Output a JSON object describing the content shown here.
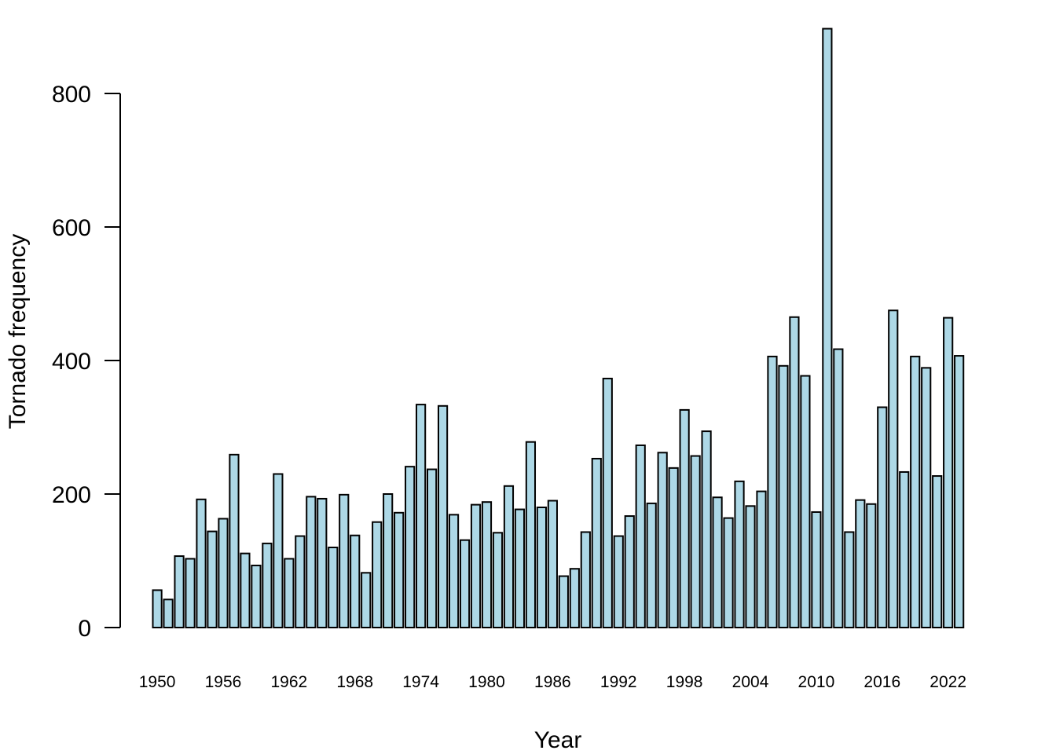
{
  "chart_data": {
    "type": "bar",
    "xlabel": "Year",
    "ylabel": "Tornado frequency",
    "ylim": [
      0,
      900
    ],
    "y_ticks": [
      0,
      200,
      400,
      600,
      800
    ],
    "x_tick_labels": [
      "1950",
      "1956",
      "1962",
      "1968",
      "1974",
      "1980",
      "1986",
      "1992",
      "1998",
      "2004",
      "2010",
      "2016",
      "2022"
    ],
    "bar_color": "#add8e6",
    "categories": [
      1950,
      1951,
      1952,
      1953,
      1954,
      1955,
      1956,
      1957,
      1958,
      1959,
      1960,
      1961,
      1962,
      1963,
      1964,
      1965,
      1966,
      1967,
      1968,
      1969,
      1970,
      1971,
      1972,
      1973,
      1974,
      1975,
      1976,
      1977,
      1978,
      1979,
      1980,
      1981,
      1982,
      1983,
      1984,
      1985,
      1986,
      1987,
      1988,
      1989,
      1990,
      1991,
      1992,
      1993,
      1994,
      1995,
      1996,
      1997,
      1998,
      1999,
      2000,
      2001,
      2002,
      2003,
      2004,
      2005,
      2006,
      2007,
      2008,
      2009,
      2010,
      2011,
      2012,
      2013,
      2014,
      2015,
      2016,
      2017,
      2018,
      2019,
      2020,
      2021,
      2022,
      2023
    ],
    "values": [
      56,
      42,
      107,
      103,
      192,
      144,
      163,
      259,
      111,
      93,
      126,
      230,
      103,
      137,
      196,
      193,
      120,
      199,
      138,
      82,
      158,
      200,
      172,
      241,
      334,
      237,
      332,
      169,
      131,
      184,
      188,
      142,
      212,
      177,
      278,
      180,
      190,
      77,
      88,
      143,
      253,
      373,
      137,
      167,
      273,
      186,
      262,
      239,
      326,
      257,
      294,
      195,
      164,
      219,
      182,
      204,
      406,
      392,
      465,
      377,
      173,
      897,
      417,
      143,
      191,
      185,
      330,
      475,
      233,
      406,
      389,
      227,
      464,
      407
    ]
  }
}
